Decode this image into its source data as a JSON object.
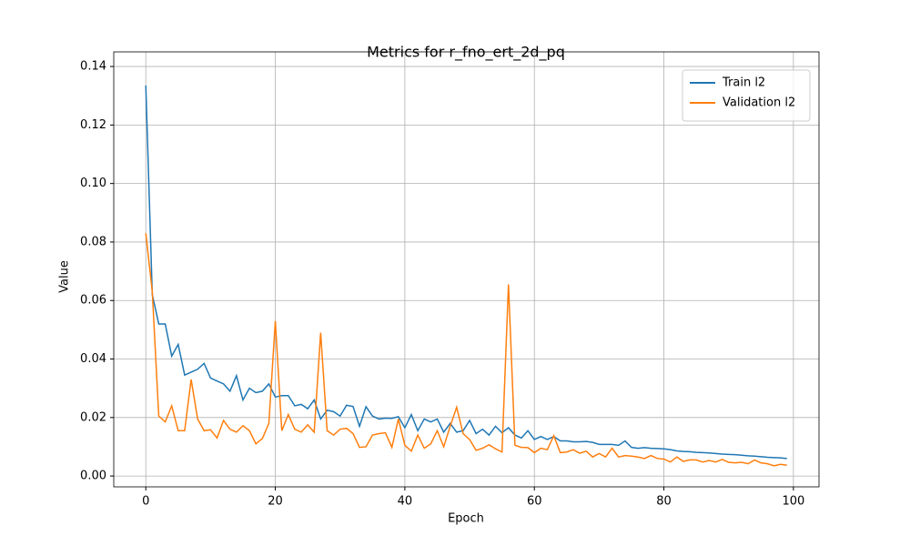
{
  "chart_data": {
    "type": "line",
    "title": "Metrics for r_fno_ert_2d_pq",
    "xlabel": "Epoch",
    "ylabel": "Value",
    "x": [
      0,
      1,
      2,
      3,
      4,
      5,
      6,
      7,
      8,
      9,
      10,
      11,
      12,
      13,
      14,
      15,
      16,
      17,
      18,
      19,
      20,
      21,
      22,
      23,
      24,
      25,
      26,
      27,
      28,
      29,
      30,
      31,
      32,
      33,
      34,
      35,
      36,
      37,
      38,
      39,
      40,
      41,
      42,
      43,
      44,
      45,
      46,
      47,
      48,
      49,
      50,
      51,
      52,
      53,
      54,
      55,
      56,
      57,
      58,
      59,
      60,
      61,
      62,
      63,
      64,
      65,
      66,
      67,
      68,
      69,
      70,
      71,
      72,
      73,
      74,
      75,
      76,
      77,
      78,
      79,
      80,
      81,
      82,
      83,
      84,
      85,
      86,
      87,
      88,
      89,
      90,
      91,
      92,
      93,
      94,
      95,
      96,
      97,
      98,
      99
    ],
    "series": [
      {
        "name": "Train l2",
        "color": "#1f77b4",
        "values": [
          0.1335,
          0.062,
          0.052,
          0.052,
          0.041,
          0.045,
          0.0345,
          0.0355,
          0.0365,
          0.0385,
          0.0335,
          0.0325,
          0.0315,
          0.029,
          0.0343,
          0.026,
          0.03,
          0.0285,
          0.029,
          0.0315,
          0.027,
          0.0275,
          0.0275,
          0.024,
          0.0245,
          0.023,
          0.026,
          0.0195,
          0.0225,
          0.022,
          0.0205,
          0.0242,
          0.0238,
          0.017,
          0.0237,
          0.0205,
          0.0195,
          0.0198,
          0.0197,
          0.0203,
          0.0165,
          0.021,
          0.0155,
          0.0195,
          0.0185,
          0.0195,
          0.015,
          0.018,
          0.015,
          0.0155,
          0.019,
          0.0145,
          0.016,
          0.014,
          0.017,
          0.0148,
          0.0165,
          0.014,
          0.013,
          0.0155,
          0.0125,
          0.0135,
          0.0125,
          0.0135,
          0.012,
          0.012,
          0.0117,
          0.0117,
          0.0118,
          0.0115,
          0.0108,
          0.0108,
          0.0108,
          0.0105,
          0.012,
          0.0098,
          0.0095,
          0.0097,
          0.0095,
          0.0094,
          0.0093,
          0.009,
          0.0086,
          0.0084,
          0.0083,
          0.0081,
          0.008,
          0.0079,
          0.0077,
          0.0075,
          0.0074,
          0.0073,
          0.0071,
          0.0069,
          0.0068,
          0.0066,
          0.0064,
          0.0063,
          0.0062,
          0.006
        ]
      },
      {
        "name": "Validation l2",
        "color": "#ff7f0e",
        "values": [
          0.083,
          0.063,
          0.0205,
          0.0185,
          0.024,
          0.0155,
          0.0155,
          0.033,
          0.0195,
          0.0155,
          0.0158,
          0.013,
          0.019,
          0.016,
          0.015,
          0.0172,
          0.0155,
          0.011,
          0.0128,
          0.018,
          0.053,
          0.0155,
          0.021,
          0.016,
          0.015,
          0.0175,
          0.015,
          0.049,
          0.0155,
          0.014,
          0.016,
          0.0163,
          0.0145,
          0.0098,
          0.01,
          0.014,
          0.0145,
          0.0148,
          0.0098,
          0.0195,
          0.0105,
          0.0085,
          0.014,
          0.0095,
          0.011,
          0.0155,
          0.01,
          0.017,
          0.0235,
          0.0145,
          0.0125,
          0.0088,
          0.0095,
          0.0107,
          0.0093,
          0.0082,
          0.0655,
          0.0105,
          0.0098,
          0.0097,
          0.008,
          0.0095,
          0.009,
          0.0138,
          0.008,
          0.0082,
          0.009,
          0.0078,
          0.0085,
          0.0065,
          0.0077,
          0.0065,
          0.0095,
          0.0065,
          0.007,
          0.0068,
          0.0065,
          0.006,
          0.007,
          0.006,
          0.0058,
          0.0048,
          0.0065,
          0.005,
          0.0055,
          0.0055,
          0.0048,
          0.0053,
          0.0048,
          0.0057,
          0.0047,
          0.0045,
          0.0047,
          0.0042,
          0.0055,
          0.0045,
          0.0042,
          0.0035,
          0.004,
          0.0037
        ]
      }
    ],
    "xlim": [
      -4.95,
      103.95
    ],
    "xticks": [
      0,
      20,
      40,
      60,
      80,
      100
    ],
    "ylim": [
      -0.0037,
      0.145
    ],
    "yticks": [
      {
        "value": 0,
        "label": "0.00"
      },
      {
        "value": 0.02,
        "label": "0.02"
      },
      {
        "value": 0.04,
        "label": "0.04"
      },
      {
        "value": 0.06,
        "label": "0.06"
      },
      {
        "value": 0.08,
        "label": "0.08"
      },
      {
        "value": 0.1,
        "label": "0.10"
      },
      {
        "value": 0.12,
        "label": "0.12"
      },
      {
        "value": 0.14,
        "label": "0.14"
      }
    ],
    "grid": true,
    "legend": "upper right"
  }
}
